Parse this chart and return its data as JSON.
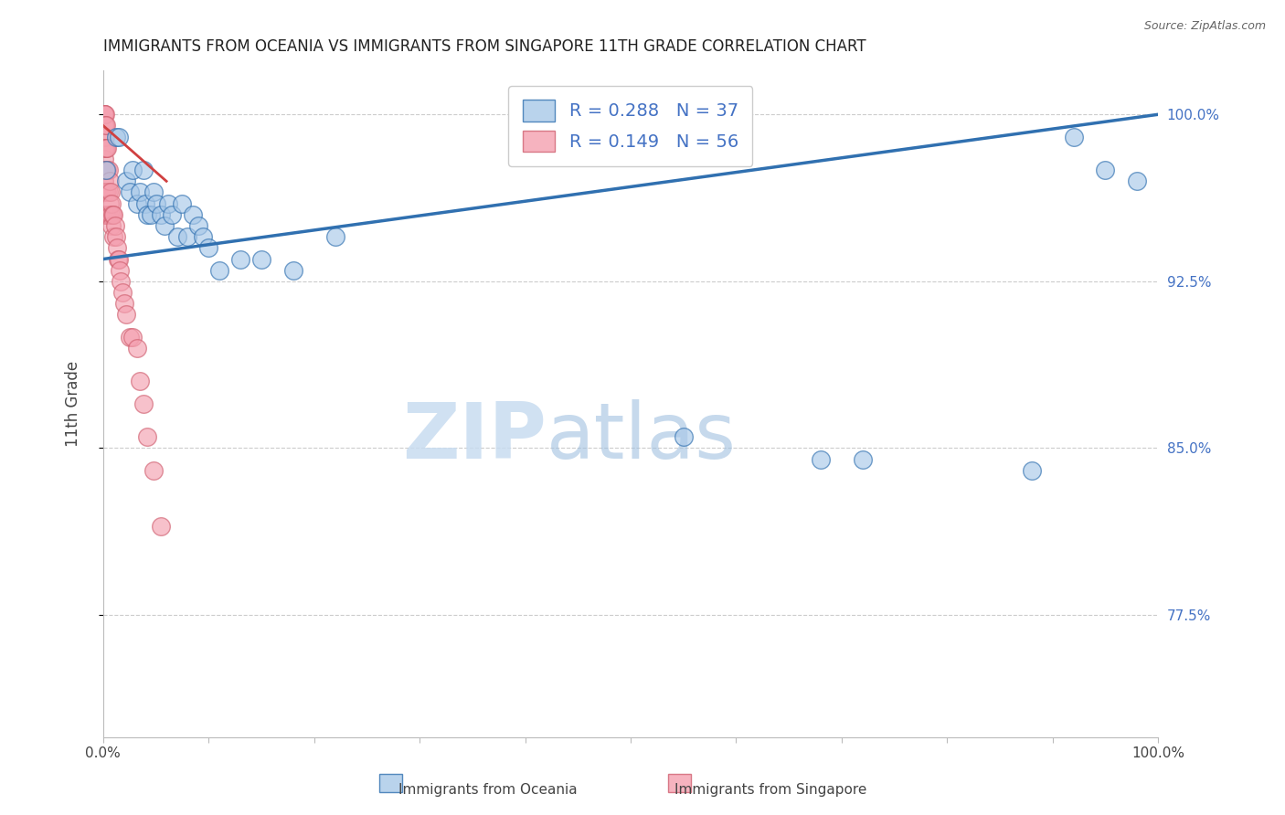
{
  "title": "IMMIGRANTS FROM OCEANIA VS IMMIGRANTS FROM SINGAPORE 11TH GRADE CORRELATION CHART",
  "source": "Source: ZipAtlas.com",
  "ylabel": "11th Grade",
  "xlim": [
    0.0,
    1.0
  ],
  "ylim": [
    0.72,
    1.02
  ],
  "yticks": [
    1.0,
    0.925,
    0.85,
    0.775
  ],
  "ytick_labels": [
    "100.0%",
    "92.5%",
    "85.0%",
    "77.5%"
  ],
  "xticks": [
    0.0,
    0.1,
    0.2,
    0.3,
    0.4,
    0.5,
    0.6,
    0.7,
    0.8,
    0.9,
    1.0
  ],
  "xtick_labels": [
    "0.0%",
    "",
    "",
    "",
    "",
    "",
    "",
    "",
    "",
    "",
    "100.0%"
  ],
  "legend_oceania_R": "R = 0.288",
  "legend_oceania_N": "N = 37",
  "legend_singapore_R": "R = 0.149",
  "legend_singapore_N": "N = 56",
  "oceania_color": "#a8c8e8",
  "singapore_color": "#f4a0b0",
  "trend_oceania_color": "#3070b0",
  "trend_singapore_color": "#d04040",
  "watermark_zip": "ZIP",
  "watermark_atlas": "atlas",
  "oceania_points_x": [
    0.003,
    0.012,
    0.015,
    0.022,
    0.025,
    0.028,
    0.032,
    0.035,
    0.038,
    0.04,
    0.042,
    0.045,
    0.048,
    0.05,
    0.055,
    0.058,
    0.062,
    0.065,
    0.07,
    0.075,
    0.08,
    0.085,
    0.09,
    0.095,
    0.1,
    0.11,
    0.13,
    0.15,
    0.18,
    0.22,
    0.55,
    0.68,
    0.72,
    0.88,
    0.92,
    0.95,
    0.98
  ],
  "oceania_points_y": [
    0.975,
    0.99,
    0.99,
    0.97,
    0.965,
    0.975,
    0.96,
    0.965,
    0.975,
    0.96,
    0.955,
    0.955,
    0.965,
    0.96,
    0.955,
    0.95,
    0.96,
    0.955,
    0.945,
    0.96,
    0.945,
    0.955,
    0.95,
    0.945,
    0.94,
    0.93,
    0.935,
    0.935,
    0.93,
    0.945,
    0.855,
    0.845,
    0.845,
    0.84,
    0.99,
    0.975,
    0.97
  ],
  "singapore_points_x": [
    0.001,
    0.001,
    0.001,
    0.001,
    0.001,
    0.001,
    0.001,
    0.001,
    0.001,
    0.001,
    0.002,
    0.002,
    0.002,
    0.002,
    0.002,
    0.002,
    0.002,
    0.003,
    0.003,
    0.003,
    0.003,
    0.003,
    0.004,
    0.004,
    0.004,
    0.004,
    0.005,
    0.005,
    0.005,
    0.006,
    0.006,
    0.007,
    0.007,
    0.008,
    0.008,
    0.009,
    0.01,
    0.01,
    0.011,
    0.012,
    0.013,
    0.014,
    0.015,
    0.016,
    0.017,
    0.018,
    0.02,
    0.022,
    0.025,
    0.028,
    0.032,
    0.035,
    0.038,
    0.042,
    0.048,
    0.055
  ],
  "singapore_points_y": [
    1.0,
    1.0,
    1.0,
    0.995,
    0.99,
    0.985,
    0.98,
    0.975,
    0.97,
    0.965,
    1.0,
    0.995,
    0.99,
    0.985,
    0.975,
    0.965,
    0.955,
    0.995,
    0.985,
    0.975,
    0.965,
    0.955,
    0.985,
    0.975,
    0.965,
    0.955,
    0.975,
    0.965,
    0.955,
    0.97,
    0.96,
    0.965,
    0.955,
    0.96,
    0.95,
    0.955,
    0.955,
    0.945,
    0.95,
    0.945,
    0.94,
    0.935,
    0.935,
    0.93,
    0.925,
    0.92,
    0.915,
    0.91,
    0.9,
    0.9,
    0.895,
    0.88,
    0.87,
    0.855,
    0.84,
    0.815
  ],
  "trend_oceania_x0": 0.0,
  "trend_oceania_x1": 1.0,
  "trend_oceania_y0": 0.935,
  "trend_oceania_y1": 1.0,
  "trend_singapore_x0": 0.0,
  "trend_singapore_x1": 0.06,
  "trend_singapore_y0": 0.995,
  "trend_singapore_y1": 0.97
}
